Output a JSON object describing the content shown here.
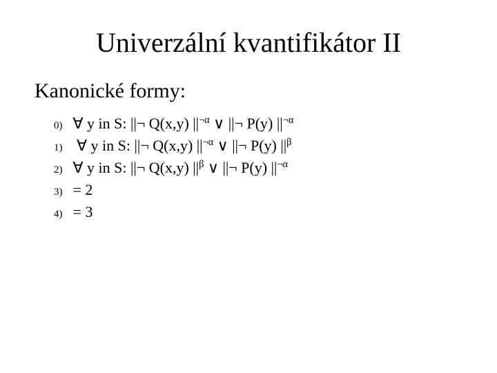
{
  "slide": {
    "title": "Univerzální kvantifikátor II",
    "heading": "Kanonické formy:",
    "title_fontsize": 40,
    "heading_fontsize": 30,
    "item_fontsize": 22,
    "numeral_fontsize": 15,
    "text_color": "#000000",
    "background_color": "#ffffff",
    "font_family": "Times New Roman",
    "items": [
      {
        "num": "0)",
        "text": " ∀ y in S: ||¬ Q(x,y) ||",
        "sup": "¬α",
        "mid": " ∨ ||¬ P(y) ||",
        "sup2": "¬α"
      },
      {
        "num": "1)",
        "text": "  ∀ y in S: ||¬ Q(x,y) ||",
        "sup": "¬α",
        "mid": " ∨ ||¬ P(y) ||",
        "sup2": "β"
      },
      {
        "num": "2)",
        "text": " ∀ y in S: ||¬ Q(x,y) ||",
        "sup": "β",
        "mid": " ∨ ||¬ P(y) ||",
        "sup2": "¬α"
      },
      {
        "num": "3)",
        "text": " = 2",
        "sup": "",
        "mid": "",
        "sup2": ""
      },
      {
        "num": "4)",
        "text": " = 3",
        "sup": "",
        "mid": "",
        "sup2": ""
      }
    ]
  }
}
